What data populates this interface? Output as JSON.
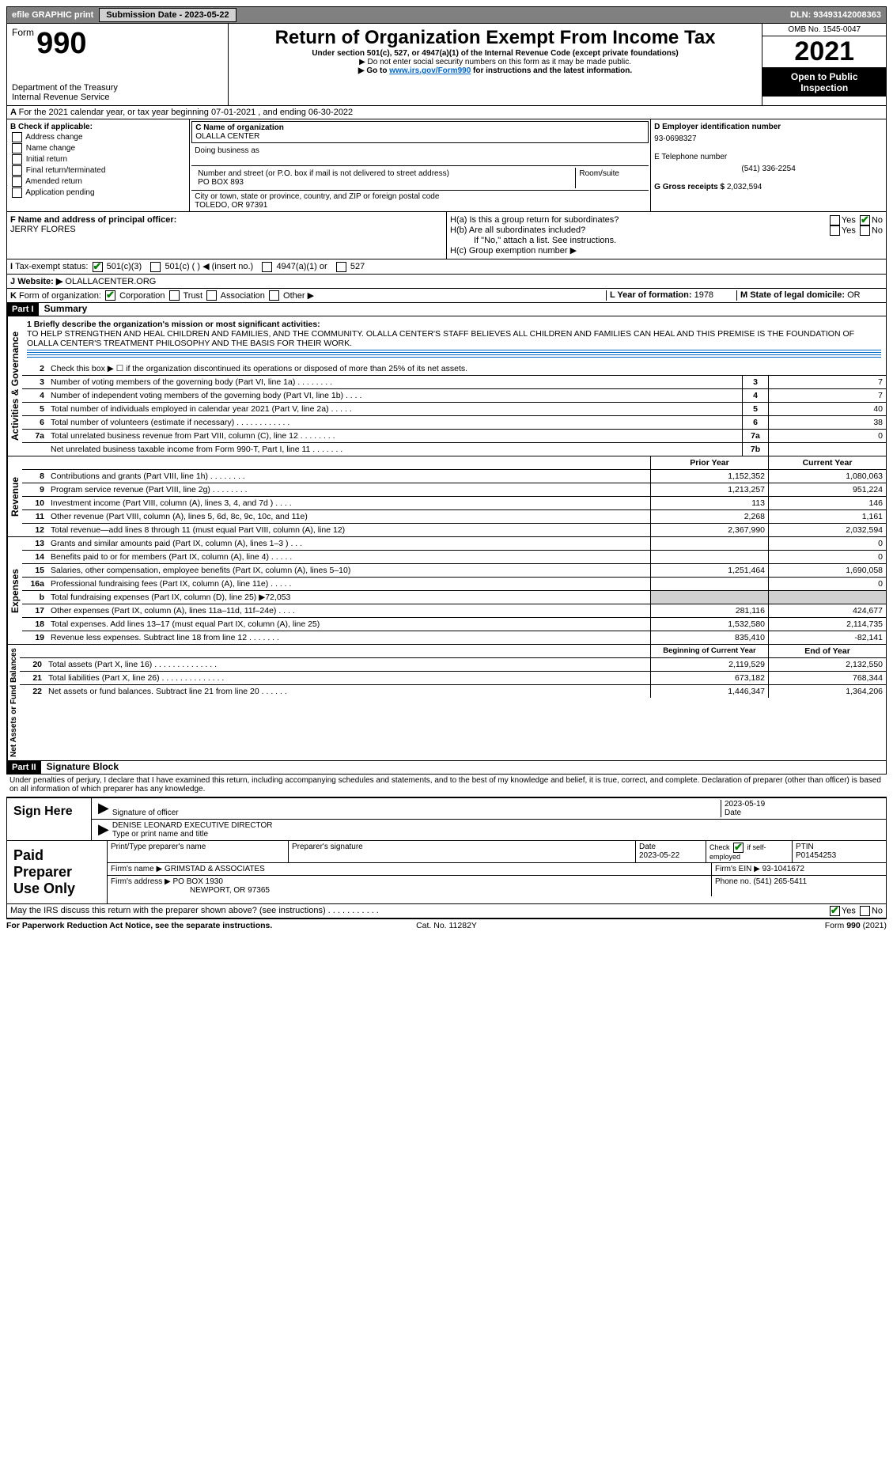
{
  "topbar": {
    "efile": "efile GRAPHIC print",
    "submission_label": "Submission Date - 2023-05-22",
    "dln": "DLN: 93493142008363"
  },
  "header": {
    "form_word": "Form",
    "form_num": "990",
    "dept": "Department of the Treasury",
    "irs": "Internal Revenue Service",
    "title": "Return of Organization Exempt From Income Tax",
    "subtitle": "Under section 501(c), 527, or 4947(a)(1) of the Internal Revenue Code (except private foundations)",
    "note1": "▶ Do not enter social security numbers on this form as it may be made public.",
    "note2_pre": "▶ Go to ",
    "note2_link": "www.irs.gov/Form990",
    "note2_post": " for instructions and the latest information.",
    "omb": "OMB No. 1545-0047",
    "year": "2021",
    "open": "Open to Public Inspection"
  },
  "section_a": "For the 2021 calendar year, or tax year beginning 07-01-2021    , and ending 06-30-2022",
  "box_b": {
    "label": "B Check if applicable:",
    "items": [
      "Address change",
      "Name change",
      "Initial return",
      "Final return/terminated",
      "Amended return",
      "Application pending"
    ]
  },
  "box_c": {
    "name_label": "C Name of organization",
    "name": "OLALLA CENTER",
    "dba_label": "Doing business as",
    "street_label": "Number and street (or P.O. box if mail is not delivered to street address)",
    "room_label": "Room/suite",
    "street": "PO BOX 893",
    "city_label": "City or town, state or province, country, and ZIP or foreign postal code",
    "city": "TOLEDO, OR  97391"
  },
  "box_d": {
    "ein_label": "D Employer identification number",
    "ein": "93-0698327",
    "phone_label": "E Telephone number",
    "phone": "(541) 336-2254",
    "gross_label": "G Gross receipts $",
    "gross": "2,032,594"
  },
  "box_f": {
    "label": "F Name and address of principal officer:",
    "name": "JERRY FLORES"
  },
  "box_h": {
    "a": "H(a)  Is this a group return for subordinates?",
    "b": "H(b)  Are all subordinates included?",
    "b_note": "If \"No,\" attach a list. See instructions.",
    "c": "H(c)  Group exemption number ▶",
    "yes": "Yes",
    "no": "No"
  },
  "line_i": {
    "label": "Tax-exempt status:",
    "opts": [
      "501(c)(3)",
      "501(c) (   ) ◀ (insert no.)",
      "4947(a)(1) or",
      "527"
    ]
  },
  "line_j": {
    "label": "Website: ▶",
    "val": "OLALLACENTER.ORG"
  },
  "line_k": {
    "label": "Form of organization:",
    "opts": [
      "Corporation",
      "Trust",
      "Association",
      "Other ▶"
    ]
  },
  "line_l": {
    "label": "L Year of formation:",
    "val": "1978"
  },
  "line_m": {
    "label": "M State of legal domicile:",
    "val": "OR"
  },
  "part1": {
    "hdr": "Part I",
    "title": "Summary",
    "briefly_label": "1  Briefly describe the organization's mission or most significant activities:",
    "briefly": "TO HELP STRENGTHEN AND HEAL CHILDREN AND FAMILIES, AND THE COMMUNITY. OLALLA CENTER'S STAFF BELIEVES ALL CHILDREN AND FAMILIES CAN HEAL AND THIS PREMISE IS THE FOUNDATION OF OLALLA CENTER'S TREATMENT PHILOSOPHY AND THE BASIS FOR THEIR WORK.",
    "line2": "Check this box ▶ ☐  if the organization discontinued its operations or disposed of more than 25% of its net assets."
  },
  "gov_label": "Activities & Governance",
  "rev_label": "Revenue",
  "exp_label": "Expenses",
  "net_label": "Net Assets or Fund Balances",
  "gov_lines": [
    {
      "n": "3",
      "d": "Number of voting members of the governing body (Part VI, line 1a)    .    .    .    .    .    .    .    .",
      "c": "3",
      "v": "7"
    },
    {
      "n": "4",
      "d": "Number of independent voting members of the governing body (Part VI, line 1b)    .    .    .    .",
      "c": "4",
      "v": "7"
    },
    {
      "n": "5",
      "d": "Total number of individuals employed in calendar year 2021 (Part V, line 2a)    .    .    .    .    .",
      "c": "5",
      "v": "40"
    },
    {
      "n": "6",
      "d": "Total number of volunteers (estimate if necessary)    .    .    .    .    .    .    .    .    .    .    .    .",
      "c": "6",
      "v": "38"
    },
    {
      "n": "7a",
      "d": "Total unrelated business revenue from Part VIII, column (C), line 12    .    .    .    .    .    .    .    .",
      "c": "7a",
      "v": "0"
    },
    {
      "n": "",
      "d": "Net unrelated business taxable income from Form 990-T, Part I, line 11    .    .    .    .    .    .    .",
      "c": "7b",
      "v": ""
    }
  ],
  "col_hdrs": {
    "prior": "Prior Year",
    "current": "Current Year"
  },
  "rev_lines": [
    {
      "n": "8",
      "d": "Contributions and grants (Part VIII, line 1h)    .    .    .    .    .    .    .    .",
      "p": "1,152,352",
      "c": "1,080,063"
    },
    {
      "n": "9",
      "d": "Program service revenue (Part VIII, line 2g)    .    .    .    .    .    .    .    .",
      "p": "1,213,257",
      "c": "951,224"
    },
    {
      "n": "10",
      "d": "Investment income (Part VIII, column (A), lines 3, 4, and 7d )    .    .    .    .",
      "p": "113",
      "c": "146"
    },
    {
      "n": "11",
      "d": "Other revenue (Part VIII, column (A), lines 5, 6d, 8c, 9c, 10c, and 11e)",
      "p": "2,268",
      "c": "1,161"
    },
    {
      "n": "12",
      "d": "Total revenue—add lines 8 through 11 (must equal Part VIII, column (A), line 12)",
      "p": "2,367,990",
      "c": "2,032,594"
    }
  ],
  "exp_lines": [
    {
      "n": "13",
      "d": "Grants and similar amounts paid (Part IX, column (A), lines 1–3 )    .    .    .",
      "p": "",
      "c": "0"
    },
    {
      "n": "14",
      "d": "Benefits paid to or for members (Part IX, column (A), line 4)    .    .    .    .    .",
      "p": "",
      "c": "0"
    },
    {
      "n": "15",
      "d": "Salaries, other compensation, employee benefits (Part IX, column (A), lines 5–10)",
      "p": "1,251,464",
      "c": "1,690,058"
    },
    {
      "n": "16a",
      "d": "Professional fundraising fees (Part IX, column (A), line 11e)    .    .    .    .    .",
      "p": "",
      "c": "0"
    },
    {
      "n": "b",
      "d": "Total fundraising expenses (Part IX, column (D), line 25) ▶72,053",
      "p": "GREY",
      "c": "GREY"
    },
    {
      "n": "17",
      "d": "Other expenses (Part IX, column (A), lines 11a–11d, 11f–24e)    .    .    .    .",
      "p": "281,116",
      "c": "424,677"
    },
    {
      "n": "18",
      "d": "Total expenses. Add lines 13–17 (must equal Part IX, column (A), line 25)",
      "p": "1,532,580",
      "c": "2,114,735"
    },
    {
      "n": "19",
      "d": "Revenue less expenses. Subtract line 18 from line 12    .    .    .    .    .    .    .",
      "p": "835,410",
      "c": "-82,141"
    }
  ],
  "net_hdrs": {
    "prior": "Beginning of Current Year",
    "current": "End of Year"
  },
  "net_lines": [
    {
      "n": "20",
      "d": "Total assets (Part X, line 16)    .    .    .    .    .    .    .    .    .    .    .    .    .    .",
      "p": "2,119,529",
      "c": "2,132,550"
    },
    {
      "n": "21",
      "d": "Total liabilities (Part X, line 26)    .    .    .    .    .    .    .    .    .    .    .    .    .    .",
      "p": "673,182",
      "c": "768,344"
    },
    {
      "n": "22",
      "d": "Net assets or fund balances. Subtract line 21 from line 20    .    .    .    .    .    .",
      "p": "1,446,347",
      "c": "1,364,206"
    }
  ],
  "part2": {
    "hdr": "Part II",
    "title": "Signature Block",
    "penalty": "Under penalties of perjury, I declare that I have examined this return, including accompanying schedules and statements, and to the best of my knowledge and belief, it is true, correct, and complete. Declaration of preparer (other than officer) is based on all information of which preparer has any knowledge."
  },
  "sign": {
    "here": "Sign Here",
    "sig_label": "Signature of officer",
    "date_label": "Date",
    "date": "2023-05-19",
    "name": "DENISE LEONARD  EXECUTIVE DIRECTOR",
    "name_label": "Type or print name and title"
  },
  "paid": {
    "label": "Paid Preparer Use Only",
    "h1": "Print/Type preparer's name",
    "h2": "Preparer's signature",
    "h3": "Date",
    "h3v": "2023-05-22",
    "h4": "Check ☑ if self-employed",
    "h5": "PTIN",
    "h5v": "P01454253",
    "firm_label": "Firm's name    ▶",
    "firm": "GRIMSTAD & ASSOCIATES",
    "ein_label": "Firm's EIN ▶",
    "ein": "93-1041672",
    "addr_label": "Firm's address ▶",
    "addr1": "PO BOX 1930",
    "addr2": "NEWPORT, OR  97365",
    "phone_label": "Phone no.",
    "phone": "(541) 265-5411"
  },
  "discuss": {
    "q": "May the IRS discuss this return with the preparer shown above? (see instructions)    .    .    .    .    .    .    .    .    .    .    .",
    "yes": "Yes",
    "no": "No"
  },
  "footer": {
    "left": "For Paperwork Reduction Act Notice, see the separate instructions.",
    "mid": "Cat. No. 11282Y",
    "right": "Form 990 (2021)"
  }
}
